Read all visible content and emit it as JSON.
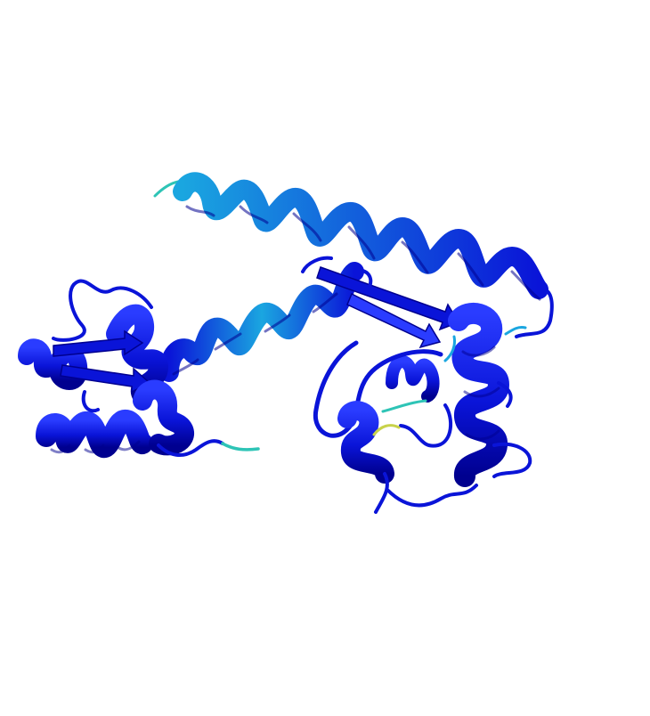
{
  "scene": {
    "subject": "protein-cartoon",
    "background_color": "#ffffff",
    "palette": {
      "core": "#0a14d8",
      "core_dark": "#00008f",
      "highlight": "#2a3cff",
      "mid_confidence": "#1aa6e0",
      "low_confidence": "#2ec4b6",
      "terminus": "#c8d24a"
    }
  }
}
